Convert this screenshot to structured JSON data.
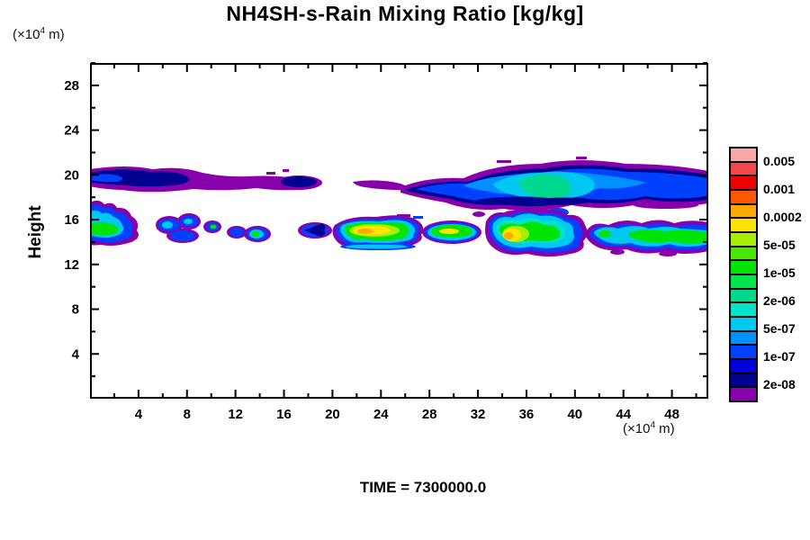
{
  "title": "NH4SH-s-Rain Mixing Ratio [kg/kg]",
  "time_label": "TIME = 7300000.0",
  "axes": {
    "y_label": "Height",
    "y_unit": {
      "prefix": "(×10",
      "sup": "4",
      "suffix": " m)"
    },
    "x_unit": {
      "prefix": "(×10",
      "sup": "4",
      "suffix": " m)"
    },
    "x_range": [
      0,
      51
    ],
    "y_range": [
      0,
      30
    ],
    "x_major_ticks": [
      4,
      8,
      12,
      16,
      20,
      24,
      28,
      32,
      36,
      40,
      44,
      48
    ],
    "y_major_ticks": [
      4,
      8,
      12,
      16,
      20,
      24,
      28
    ],
    "minor_step": 2
  },
  "colorbar": {
    "colors": [
      "#f7a8a8",
      "#f44848",
      "#ee0000",
      "#ff5800",
      "#ffa800",
      "#ffe400",
      "#a8ee00",
      "#48e800",
      "#00e400",
      "#00e44c",
      "#00d890",
      "#00e4c8",
      "#00c8f0",
      "#0090ff",
      "#0040ff",
      "#0000dc",
      "#000090",
      "#8800ac"
    ],
    "labels": [
      "0.005",
      "0.001",
      "0.0002",
      "5e-05",
      "1e-05",
      "2e-06",
      "5e-07",
      "1e-07",
      "2e-08"
    ]
  },
  "chart_data": {
    "type": "filled_contour",
    "title": "NH4SH-s-Rain Mixing Ratio [kg/kg]",
    "ylabel": "Height",
    "x_unit": "(×10^4 m)",
    "y_unit": "(×10^4 m)",
    "x_range": [
      0,
      51
    ],
    "y_range": [
      0,
      30
    ],
    "x_major_ticks": [
      4,
      8,
      12,
      16,
      20,
      24,
      28,
      32,
      36,
      40,
      44,
      48
    ],
    "y_major_ticks": [
      4,
      8,
      12,
      16,
      20,
      24,
      28
    ],
    "time": 7300000.0,
    "grid": false,
    "legend_position": "right",
    "contour_levels": [
      2e-08,
      5e-08,
      1e-07,
      2e-07,
      5e-07,
      1e-06,
      2e-06,
      5e-06,
      1e-05,
      2e-05,
      5e-05,
      0.0001,
      0.0002,
      0.0005,
      0.001,
      0.002,
      0.005
    ],
    "labeled_levels": [
      "0.005",
      "0.001",
      "0.0002",
      "5e-05",
      "1e-05",
      "2e-06",
      "5e-07",
      "1e-07",
      "2e-08"
    ],
    "features": [
      {
        "region": "upper-left cloud band",
        "x": [
          0,
          10.5
        ],
        "height": [
          18.3,
          20.6
        ],
        "peak_value": 1e-07,
        "dominant_colors": [
          "navy",
          "purple"
        ]
      },
      {
        "region": "thin purple streak",
        "x": [
          10.5,
          21
        ],
        "height": [
          18.8,
          19.6
        ],
        "peak_value": 2e-08,
        "dominant_colors": [
          "purple"
        ]
      },
      {
        "region": "large anvil cloud extending to right edge",
        "x": [
          25.5,
          51
        ],
        "height": [
          16.3,
          21.2
        ],
        "peak_value": 2e-06,
        "dominant_colors": [
          "blue",
          "cyan",
          "spring-green core near x=38-41"
        ]
      },
      {
        "region": "lower band blob at left edge",
        "x": [
          0,
          3.7
        ],
        "height": [
          13.2,
          16.2
        ],
        "peak_value": 1e-05
      },
      {
        "region": "lower band small blue blobs",
        "x": [
          5.5,
          11
        ],
        "height": [
          13.5,
          15.3
        ],
        "peak_value": 5e-07
      },
      {
        "region": "lower band blob with green core",
        "x": [
          11.5,
          15
        ],
        "height": [
          13.7,
          15.2
        ],
        "peak_value": 1e-05
      },
      {
        "region": "lower band navy blob",
        "x": [
          17.5,
          20
        ],
        "height": [
          13.8,
          15.2
        ],
        "peak_value": 1e-07
      },
      {
        "region": "lower band wide blob with yellow-orange core",
        "x": [
          20,
          27.3
        ],
        "height": [
          13.2,
          15.6
        ],
        "peak_value": 0.0002
      },
      {
        "region": "lower band green blob",
        "x": [
          27.5,
          32
        ],
        "height": [
          13.5,
          15.4
        ],
        "peak_value": 5e-05
      },
      {
        "region": "lower band convective core with orange spot",
        "x": [
          32.5,
          41
        ],
        "height": [
          12.7,
          15.9
        ],
        "peak_value": 0.0002
      },
      {
        "region": "lower band right cyan-green band to edge",
        "x": [
          41,
          51
        ],
        "height": [
          13.0,
          15.5
        ],
        "peak_value": 1e-05
      }
    ]
  }
}
